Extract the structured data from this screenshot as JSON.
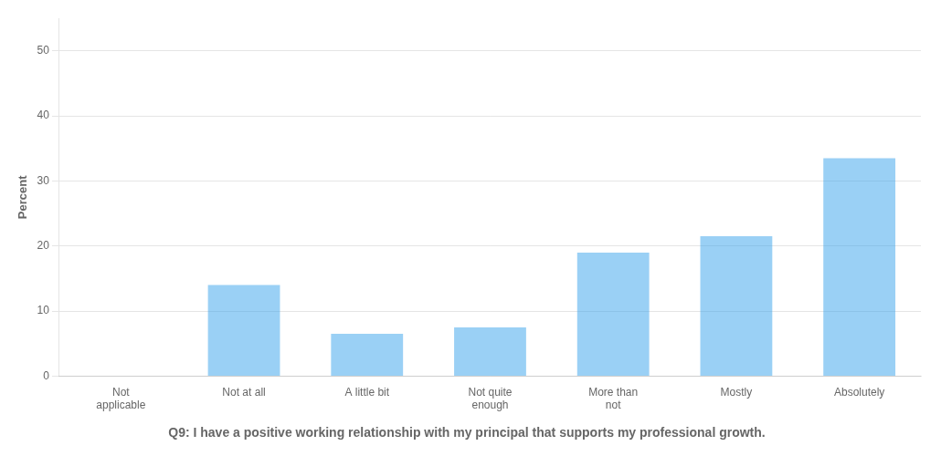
{
  "chart_data": {
    "type": "bar",
    "title": "Q9: I have a positive working relationship with my principal that supports my professional growth.",
    "ylabel": "Percent",
    "categories": [
      "Not\napplicable",
      "Not at all",
      "A little bit",
      "Not quite\nenough",
      "More than\nnot",
      "Mostly",
      "Absolutely"
    ],
    "values": [
      0,
      14,
      6.5,
      7.5,
      19,
      21.5,
      33.5
    ],
    "ylim": [
      0,
      55
    ],
    "yticks": [
      0,
      10,
      20,
      30,
      40,
      50
    ],
    "grid": true
  }
}
